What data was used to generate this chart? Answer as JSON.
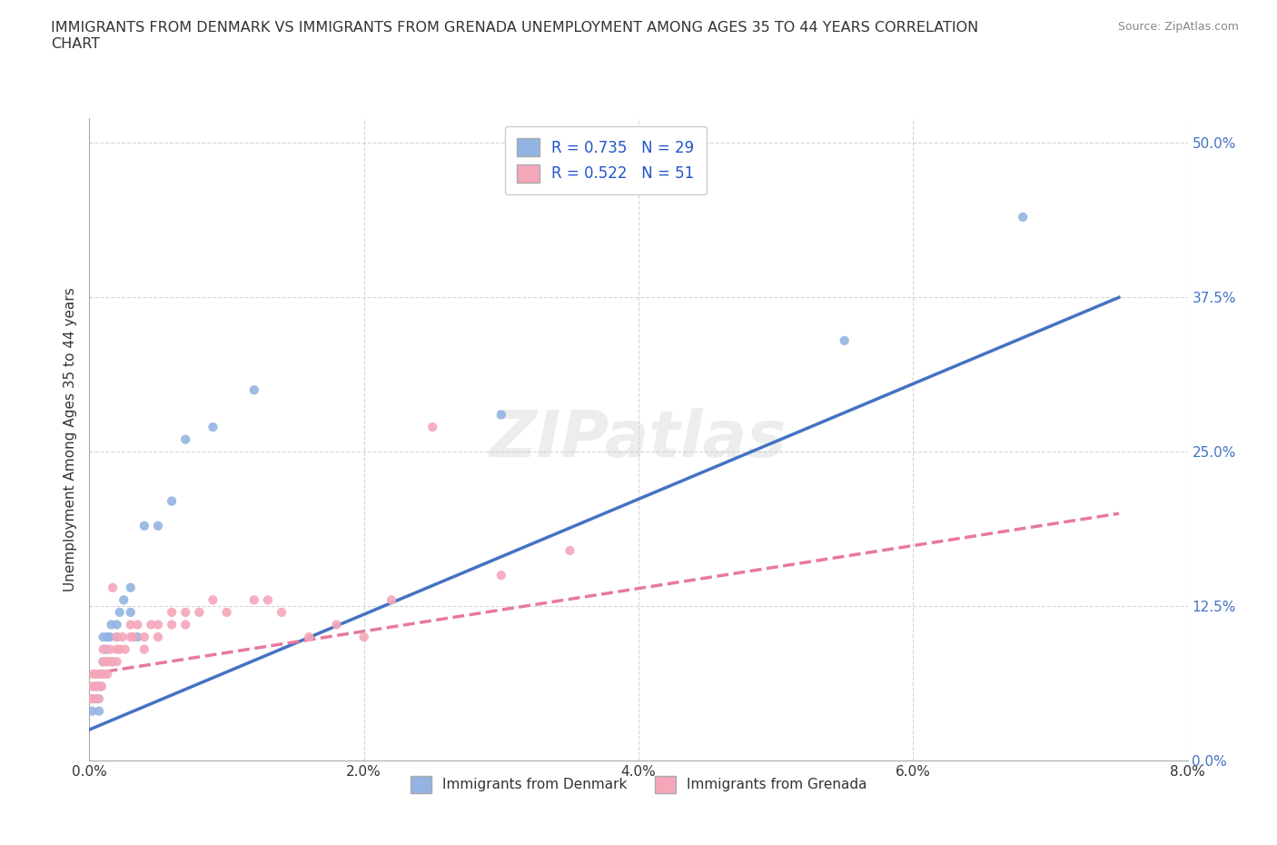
{
  "title": "IMMIGRANTS FROM DENMARK VS IMMIGRANTS FROM GRENADA UNEMPLOYMENT AMONG AGES 35 TO 44 YEARS CORRELATION\nCHART",
  "source": "Source: ZipAtlas.com",
  "ylabel_label": "Unemployment Among Ages 35 to 44 years",
  "xlim": [
    0.0,
    0.08
  ],
  "ylim": [
    0.0,
    0.52
  ],
  "xticks": [
    0.0,
    0.02,
    0.04,
    0.06,
    0.08
  ],
  "xtick_labels": [
    "0.0%",
    "2.0%",
    "4.0%",
    "6.0%",
    "8.0%"
  ],
  "ytick_labels": [
    "0.0%",
    "12.5%",
    "25.0%",
    "37.5%",
    "50.0%"
  ],
  "yticks": [
    0.0,
    0.125,
    0.25,
    0.375,
    0.5
  ],
  "denmark_color": "#92b4e3",
  "grenada_color": "#f4a7b9",
  "denmark_line_color": "#4472c4",
  "grenada_line_color": "#e878a0",
  "R_denmark": 0.735,
  "N_denmark": 29,
  "R_grenada": 0.522,
  "N_grenada": 51,
  "denmark_scatter_x": [
    0.0002,
    0.0003,
    0.0005,
    0.0006,
    0.0007,
    0.0008,
    0.001,
    0.001,
    0.0012,
    0.0013,
    0.0015,
    0.0016,
    0.0017,
    0.002,
    0.002,
    0.0022,
    0.0025,
    0.003,
    0.003,
    0.0035,
    0.004,
    0.005,
    0.006,
    0.007,
    0.009,
    0.012,
    0.03,
    0.055,
    0.068
  ],
  "denmark_scatter_y": [
    0.04,
    0.05,
    0.06,
    0.05,
    0.04,
    0.06,
    0.08,
    0.1,
    0.09,
    0.1,
    0.1,
    0.11,
    0.08,
    0.1,
    0.11,
    0.12,
    0.13,
    0.12,
    0.14,
    0.1,
    0.19,
    0.19,
    0.21,
    0.26,
    0.27,
    0.3,
    0.28,
    0.34,
    0.44
  ],
  "grenada_scatter_x": [
    0.0001,
    0.0002,
    0.0003,
    0.0003,
    0.0004,
    0.0005,
    0.0006,
    0.0007,
    0.0008,
    0.0009,
    0.001,
    0.001,
    0.001,
    0.0012,
    0.0013,
    0.0014,
    0.0015,
    0.0016,
    0.0017,
    0.002,
    0.002,
    0.002,
    0.0022,
    0.0024,
    0.0026,
    0.003,
    0.003,
    0.0032,
    0.0035,
    0.004,
    0.004,
    0.0045,
    0.005,
    0.005,
    0.006,
    0.006,
    0.007,
    0.007,
    0.008,
    0.009,
    0.01,
    0.012,
    0.013,
    0.014,
    0.016,
    0.018,
    0.02,
    0.022,
    0.025,
    0.03,
    0.035
  ],
  "grenada_scatter_y": [
    0.05,
    0.06,
    0.05,
    0.07,
    0.06,
    0.07,
    0.06,
    0.05,
    0.07,
    0.06,
    0.07,
    0.08,
    0.09,
    0.08,
    0.07,
    0.08,
    0.09,
    0.08,
    0.14,
    0.08,
    0.09,
    0.1,
    0.09,
    0.1,
    0.09,
    0.1,
    0.11,
    0.1,
    0.11,
    0.09,
    0.1,
    0.11,
    0.1,
    0.11,
    0.11,
    0.12,
    0.11,
    0.12,
    0.12,
    0.13,
    0.12,
    0.13,
    0.13,
    0.12,
    0.1,
    0.11,
    0.1,
    0.13,
    0.27,
    0.15,
    0.17
  ],
  "legend_label_denmark": "Immigrants from Denmark",
  "legend_label_grenada": "Immigrants from Grenada",
  "dk_line_x0": 0.0,
  "dk_line_y0": 0.025,
  "dk_line_x1": 0.075,
  "dk_line_y1": 0.375,
  "gr_line_x0": 0.0,
  "gr_line_y0": 0.07,
  "gr_line_x1": 0.075,
  "gr_line_y1": 0.2
}
